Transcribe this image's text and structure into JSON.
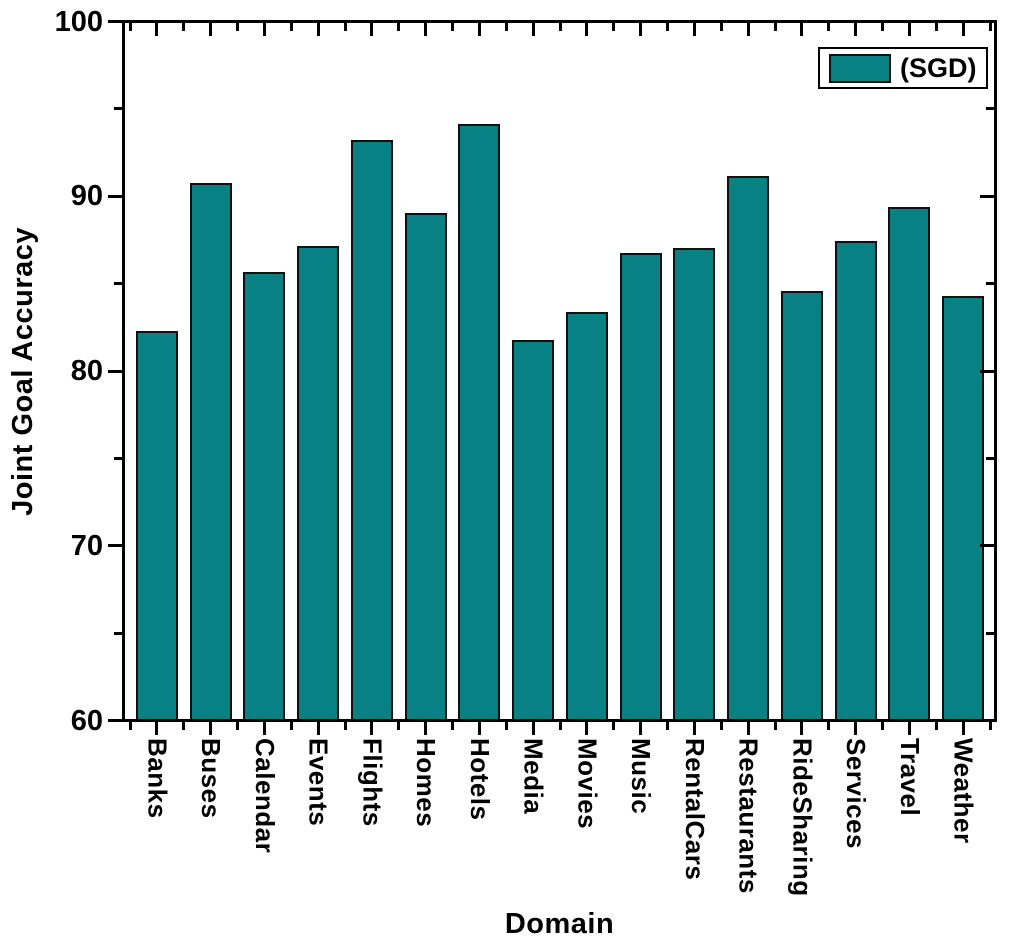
{
  "chart_data": {
    "type": "bar",
    "title": "",
    "xlabel": "Domain",
    "ylabel": "Joint Goal Accuracy",
    "legend": {
      "label": "(SGD)",
      "position": "top-right"
    },
    "categories": [
      "Banks",
      "Buses",
      "Calendar",
      "Events",
      "Flights",
      "Homes",
      "Hotels",
      "Media",
      "Movies",
      "Music",
      "RentalCars",
      "Restaurants",
      "RideSharing",
      "Services",
      "Travel",
      "Weather"
    ],
    "values": [
      82.3,
      90.8,
      85.7,
      87.2,
      93.3,
      89.1,
      94.2,
      81.8,
      83.4,
      86.8,
      87.1,
      91.2,
      84.6,
      87.5,
      89.4,
      84.3
    ],
    "ylim": [
      60,
      100
    ],
    "yticks_major": [
      100,
      90,
      80,
      70,
      60
    ],
    "yticks_minor": [
      95,
      85,
      75,
      65
    ],
    "grid": false,
    "bar_color": "#088184",
    "bar_border_color": "#101010",
    "axis_color": "#000000",
    "background": "#FFFFFF"
  }
}
